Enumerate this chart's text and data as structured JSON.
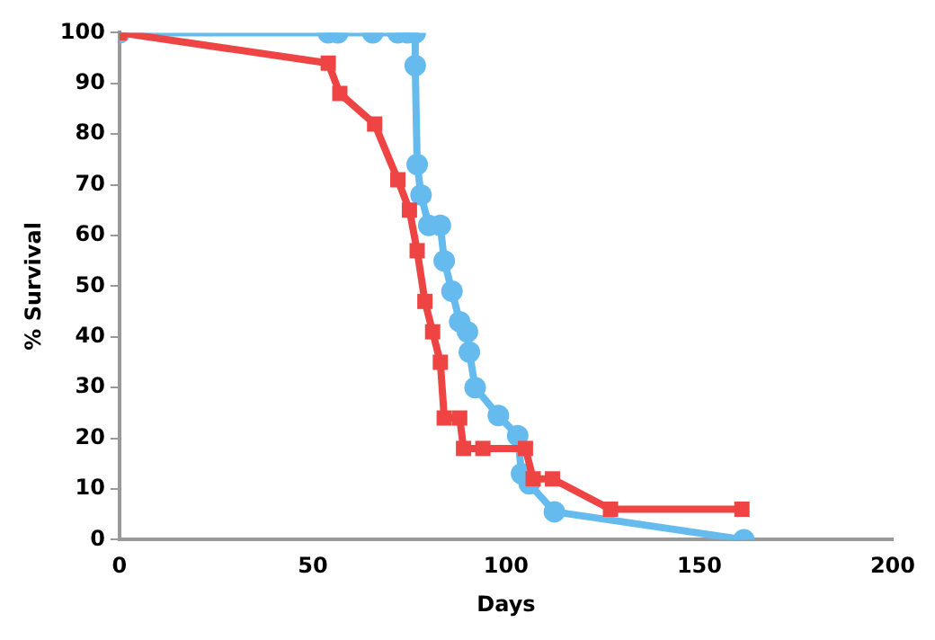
{
  "chart_data": {
    "type": "line",
    "xlabel": "Days",
    "ylabel": "% Survival",
    "xlim": [
      0,
      200
    ],
    "xticks": [
      0,
      50,
      100,
      150,
      200
    ],
    "ylim": [
      0,
      100
    ],
    "yticks": [
      0,
      10,
      20,
      30,
      40,
      50,
      60,
      70,
      80,
      90,
      100
    ],
    "grid": false,
    "legend": false,
    "series": [
      {
        "color": "#66bbee",
        "marker": "circle",
        "x": [
          0,
          54,
          56.5,
          65.5,
          72,
          74.5,
          76.5,
          76.5,
          77,
          78,
          80,
          83,
          84,
          86,
          88,
          90,
          90.5,
          92,
          98,
          103,
          104,
          106,
          112.5,
          161.5
        ],
        "values": [
          100,
          100,
          100,
          100,
          100,
          100,
          100,
          93.5,
          74,
          68,
          62,
          62,
          55,
          49,
          43,
          41,
          37,
          30,
          24.5,
          20.5,
          13,
          11,
          5.5,
          0
        ]
      },
      {
        "color": "#ee4444",
        "marker": "square",
        "x": [
          0,
          54,
          57,
          66,
          72,
          75,
          77,
          79,
          81,
          83,
          84,
          88,
          89,
          94,
          105,
          107,
          112,
          127,
          161
        ],
        "values": [
          100,
          94,
          88,
          82,
          71,
          65,
          57,
          47,
          41,
          35,
          24,
          24,
          18,
          18,
          18,
          12,
          12,
          6,
          6
        ]
      }
    ]
  }
}
